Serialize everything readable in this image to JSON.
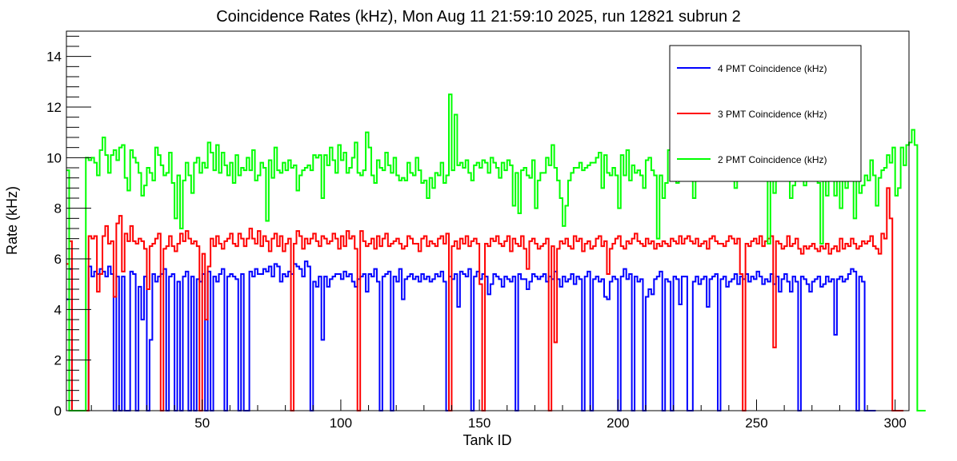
{
  "chart_data": {
    "type": "line",
    "step": true,
    "title": "Coincidence Rates (kHz), Mon Aug 11 21:59:10 2025, run 12821 subrun 2",
    "xlabel": "Tank ID",
    "ylabel": "Rate (kHz)",
    "xlim": [
      1,
      305
    ],
    "ylim": [
      0,
      15
    ],
    "x_ticks": [
      50,
      100,
      150,
      200,
      250,
      300
    ],
    "y_ticks": [
      0,
      2,
      4,
      6,
      8,
      10,
      12,
      14
    ],
    "legend_position": "top-right",
    "grid": false,
    "x_start": 1,
    "series": [
      {
        "name": "4 PMT Coincidence (kHz)",
        "color": "#0000ff",
        "values": [
          4.4,
          5.6,
          0,
          0,
          0,
          0,
          0,
          0,
          5.7,
          5.3,
          5.5,
          5.4,
          5.6,
          5.5,
          5.3,
          5.7,
          5.4,
          0,
          5.3,
          0,
          5.3,
          0,
          0,
          5.5,
          5.4,
          0,
          4.9,
          3.6,
          5.3,
          0,
          2.8,
          5.4,
          5.1,
          5.3,
          5.4,
          5.6,
          0,
          5.3,
          5.4,
          0,
          5.1,
          0,
          5.3,
          5.5,
          0,
          5.3,
          0,
          5.2,
          5.1,
          5.4,
          0,
          5.5,
          0,
          5.3,
          5.1,
          5.4,
          5.6,
          0,
          5.3,
          5.4,
          5.3,
          5.2,
          0,
          5.4,
          0,
          0,
          5.5,
          5.3,
          5.6,
          5.4,
          5.4,
          5.6,
          5.5,
          5.7,
          5.3,
          5.8,
          5.7,
          5.1,
          5.4,
          5.3,
          5.5,
          5.4,
          5.8,
          5.7,
          5.6,
          5.3,
          5.9,
          5.7,
          0,
          5.1,
          4.9,
          5.3,
          2.8,
          5.3,
          4.9,
          5.2,
          5.3,
          5.4,
          5.4,
          5.2,
          5.5,
          5.3,
          5.4,
          5.1,
          4.9,
          5.2,
          5.3,
          5.4,
          4.7,
          5.4,
          5.3,
          5.6,
          5.1,
          0,
          5.3,
          5.4,
          5.5,
          0,
          5.3,
          5.1,
          5.6,
          4.4,
          5.2,
          5.3,
          5.4,
          5.2,
          5.3,
          5.1,
          5.4,
          5.2,
          5.3,
          5.1,
          5.2,
          5.4,
          5.3,
          5.5,
          5.1,
          0,
          5.3,
          5.2,
          5.4,
          4.1,
          5.5,
          5.4,
          5.3,
          5.6,
          0,
          5.3,
          5.5,
          5.2,
          5.4,
          5.3,
          4.6,
          5.0,
          5.4,
          5.3,
          5.2,
          4.9,
          5.3,
          5.2,
          5.1,
          5.3,
          0,
          5.4,
          5.2,
          5.2,
          4.8,
          5.1,
          5.4,
          5.3,
          5.2,
          5.3,
          5.4,
          5.1,
          5.3,
          5.2,
          5.5,
          5.2,
          4.9,
          5.3,
          5.1,
          5.2,
          5.4,
          5.0,
          5.3,
          5.2,
          0,
          5.3,
          5.5,
          0,
          5.2,
          5.3,
          5.1,
          5.2,
          4.5,
          4.4,
          5.1,
          5.3,
          5.2,
          0,
          5.3,
          5.6,
          5.2,
          5.4,
          0,
          5.3,
          5.1,
          5.2,
          0,
          4.5,
          4.8,
          4.6,
          5.2,
          5.3,
          5.5,
          0,
          5.2,
          5.1,
          0,
          5.3,
          5.2,
          4.2,
          5.3,
          5.3,
          0,
          0,
          5.1,
          5.3,
          5.0,
          5.2,
          5.3,
          4.1,
          5.2,
          5.3,
          5.4,
          0,
          5.2,
          5.3,
          4.9,
          5.1,
          5.2,
          5.4,
          5.0,
          5.3,
          5.2,
          5.4,
          5.1,
          5.3,
          5.2,
          5.5,
          5.3,
          5.0,
          5.2,
          5.1,
          5.4,
          5.0,
          5.3,
          4.7,
          5.2,
          5.4,
          5.1,
          4.7,
          5.3,
          5.1,
          0,
          5.3,
          5.2,
          5.0,
          4.7,
          5.1,
          5.2,
          5.3,
          4.9,
          5.0,
          5.3,
          5.1,
          5.2,
          3.0,
          5.2,
          5.3,
          5.1,
          5.2,
          5.4,
          5.6,
          5.5,
          0,
          5.3,
          5.1,
          0,
          0,
          0,
          0
        ]
      },
      {
        "name": "3 PMT Coincidence (kHz)",
        "color": "#ff0000",
        "values": [
          5.8,
          6.7,
          0,
          0,
          0,
          0,
          0,
          0,
          6.9,
          6.8,
          6.9,
          4.7,
          5.4,
          6.9,
          7.3,
          6.6,
          6.7,
          4.5,
          7.4,
          7.7,
          5.5,
          7.0,
          6.7,
          7.3,
          6.7,
          6.6,
          6.8,
          6.7,
          6.4,
          4.8,
          6.5,
          6.6,
          6.8,
          7.0,
          0,
          6.4,
          6.5,
          6.9,
          6.5,
          6.3,
          6.6,
          7.0,
          6.7,
          7.1,
          6.8,
          6.6,
          6.7,
          6.5,
          0,
          6.2,
          3.6,
          5.7,
          6.8,
          6.5,
          6.9,
          6.6,
          6.4,
          6.7,
          6.8,
          7.0,
          6.6,
          6.5,
          7.0,
          6.8,
          6.5,
          6.8,
          7.2,
          6.8,
          6.6,
          7.1,
          6.5,
          6.9,
          6.7,
          6.3,
          6.8,
          7.0,
          6.5,
          6.9,
          6.3,
          6.6,
          6.8,
          0,
          6.6,
          7.1,
          6.9,
          6.4,
          6.8,
          6.6,
          6.8,
          7.0,
          6.7,
          6.5,
          6.9,
          6.8,
          6.6,
          6.7,
          7.0,
          6.8,
          6.4,
          6.9,
          6.5,
          7.1,
          6.8,
          6.9,
          6.4,
          0,
          7.1,
          6.7,
          6.5,
          6.6,
          6.8,
          6.4,
          6.9,
          6.5,
          6.8,
          7.0,
          6.5,
          6.6,
          6.7,
          6.8,
          6.6,
          6.4,
          6.5,
          6.9,
          6.8,
          6.6,
          6.6,
          6.3,
          6.8,
          6.9,
          6.5,
          6.7,
          6.6,
          6.5,
          6.8,
          6.9,
          6.6,
          7.0,
          0,
          6.5,
          6.7,
          6.4,
          6.8,
          6.6,
          6.9,
          6.5,
          6.7,
          6.8,
          6.6,
          5.0,
          0,
          6.6,
          6.5,
          6.8,
          6.7,
          6.9,
          6.6,
          6.5,
          6.7,
          6.9,
          6.3,
          6.8,
          6.6,
          6.5,
          6.9,
          6.4,
          5.6,
          6.7,
          6.8,
          6.6,
          6.4,
          6.5,
          6.6,
          6.8,
          0,
          6.5,
          2.7,
          6.4,
          6.7,
          6.6,
          6.8,
          6.5,
          6.4,
          6.9,
          6.7,
          6.8,
          6.3,
          6.6,
          6.7,
          6.4,
          6.5,
          6.8,
          6.9,
          6.5,
          6.7,
          5.4,
          6.4,
          6.6,
          6.8,
          6.9,
          6.5,
          6.4,
          6.7,
          6.6,
          6.8,
          7.0,
          6.7,
          6.6,
          6.5,
          6.8,
          6.6,
          6.7,
          6.4,
          6.6,
          6.5,
          6.7,
          6.6,
          6.5,
          6.8,
          6.7,
          6.6,
          6.9,
          6.6,
          6.8,
          6.9,
          6.7,
          6.6,
          6.8,
          6.5,
          6.6,
          6.7,
          6.4,
          6.8,
          6.9,
          6.7,
          6.6,
          6.6,
          6.5,
          6.7,
          6.9,
          6.8,
          6.6,
          6.8,
          5.4,
          0,
          6.6,
          6.5,
          6.7,
          6.8,
          6.6,
          6.9,
          6.5,
          6.7,
          6.8,
          6.9,
          2.5,
          6.7,
          6.6,
          6.4,
          6.5,
          6.9,
          6.5,
          6.6,
          6.8,
          6.4,
          6.2,
          6.5,
          6.4,
          6.5,
          6.6,
          6.4,
          6.3,
          6.5,
          6.4,
          6.6,
          6.2,
          6.4,
          6.5,
          6.3,
          6.8,
          6.4,
          6.6,
          6.5,
          6.8,
          6.6,
          6.4,
          6.5,
          6.7,
          6.6,
          6.7,
          6.9,
          6.5,
          6.4,
          6.2,
          7.0,
          6.8,
          8.8,
          7.6,
          0,
          0,
          0,
          0
        ]
      },
      {
        "name": "2 PMT Coincidence (kHz)",
        "color": "#00ff00",
        "values": [
          9.5,
          0,
          0,
          0,
          0,
          0,
          0,
          10.0,
          9.9,
          10.0,
          9.8,
          9.3,
          10.3,
          10.8,
          10.1,
          9.4,
          10.1,
          10.3,
          9.9,
          10.4,
          10.5,
          9.2,
          8.7,
          10.3,
          10.0,
          9.8,
          9.4,
          8.5,
          8.9,
          9.6,
          9.4,
          9.1,
          10.4,
          10.1,
          9.7,
          9.3,
          9.4,
          10.2,
          9.0,
          7.6,
          9.3,
          7.2,
          9.1,
          9.8,
          9.3,
          8.6,
          9.8,
          10.0,
          9.4,
          9.8,
          9.6,
          10.6,
          10.2,
          9.5,
          10.5,
          9.4,
          10.2,
          9.7,
          9.3,
          9.8,
          9.0,
          10.1,
          9.3,
          9.6,
          9.5,
          10.0,
          9.5,
          10.3,
          9.1,
          9.3,
          9.8,
          9.6,
          7.5,
          9.9,
          9.2,
          10.4,
          9.5,
          9.4,
          9.8,
          9.5,
          9.9,
          9.6,
          9.7,
          8.7,
          9.3,
          9.5,
          9.6,
          9.7,
          9.5,
          10.1,
          10.0,
          10.1,
          8.4,
          10.1,
          9.7,
          10.4,
          9.9,
          9.4,
          10.5,
          9.9,
          10.2,
          9.4,
          9.6,
          10.0,
          10.6,
          9.4,
          9.3,
          9.5,
          11.0,
          10.4,
          9.3,
          9.0,
          9.9,
          9.6,
          9.5,
          10.2,
          9.7,
          9.4,
          10.0,
          9.3,
          9.1,
          9.2,
          9.1,
          9.8,
          9.4,
          9.3,
          10.0,
          9.5,
          9.0,
          9.1,
          8.4,
          9.2,
          8.8,
          9.4,
          9.3,
          9.8,
          9.0,
          9.3,
          12.5,
          9.5,
          11.7,
          9.7,
          9.8,
          9.6,
          9.9,
          9.4,
          9.1,
          9.7,
          9.8,
          9.6,
          9.9,
          9.8,
          9.4,
          10.0,
          9.8,
          9.6,
          9.2,
          9.8,
          9.5,
          9.9,
          9.7,
          8.1,
          9.4,
          7.8,
          9.5,
          9.6,
          9.3,
          9.2,
          9.9,
          8.0,
          9.1,
          9.4,
          9.4,
          10.0,
          9.7,
          10.5,
          9.6,
          9.1,
          8.4,
          7.3,
          8.1,
          9.1,
          9.4,
          9.6,
          9.6,
          9.8,
          9.5,
          9.6,
          9.7,
          9.8,
          9.8,
          10.0,
          10.2,
          8.8,
          10.1,
          9.4,
          9.3,
          9.6,
          9.3,
          8.0,
          10.1,
          9.3,
          10.3,
          9.1,
          9.7,
          9.4,
          9.5,
          9.3,
          8.8,
          9.9,
          10.0,
          9.5,
          9.3,
          6.8,
          9.3,
          8.4,
          9.0,
          10.3,
          9.6,
          9.9,
          9.0,
          9.6,
          9.5,
          9.4,
          9.8,
          9.3,
          8.4,
          10.1,
          9.4,
          9.3,
          9.6,
          9.8,
          10.1,
          9.4,
          9.1,
          9.5,
          9.7,
          9.2,
          9.3,
          9.4,
          10.2,
          8.8,
          9.5,
          9.3,
          10.1,
          9.6,
          9.7,
          9.3,
          9.4,
          10.4,
          9.5,
          9.6,
          9.9,
          6.6,
          9.3,
          8.6,
          10.0,
          9.3,
          10.0,
          9.8,
          9.4,
          8.4,
          8.9,
          10.3,
          10.1,
          9.9,
          8.9,
          9.3,
          9.1,
          9.2,
          9.6,
          9.0,
          6.6,
          9.1,
          8.5,
          9.6,
          9.4,
          8.5,
          9.5,
          8.0,
          9.4,
          8.8,
          9.2,
          9.6,
          7.6,
          10.4,
          8.6,
          8.9,
          9.3,
          9.1,
          9.9,
          9.3,
          8.1,
          9.2,
          9.5,
          9.6,
          10.1,
          9.8,
          10.4,
          8.5,
          8.8,
          10.4,
          9.7,
          10.5,
          10.6,
          11.1,
          10.5,
          0,
          0,
          0
        ]
      }
    ]
  }
}
